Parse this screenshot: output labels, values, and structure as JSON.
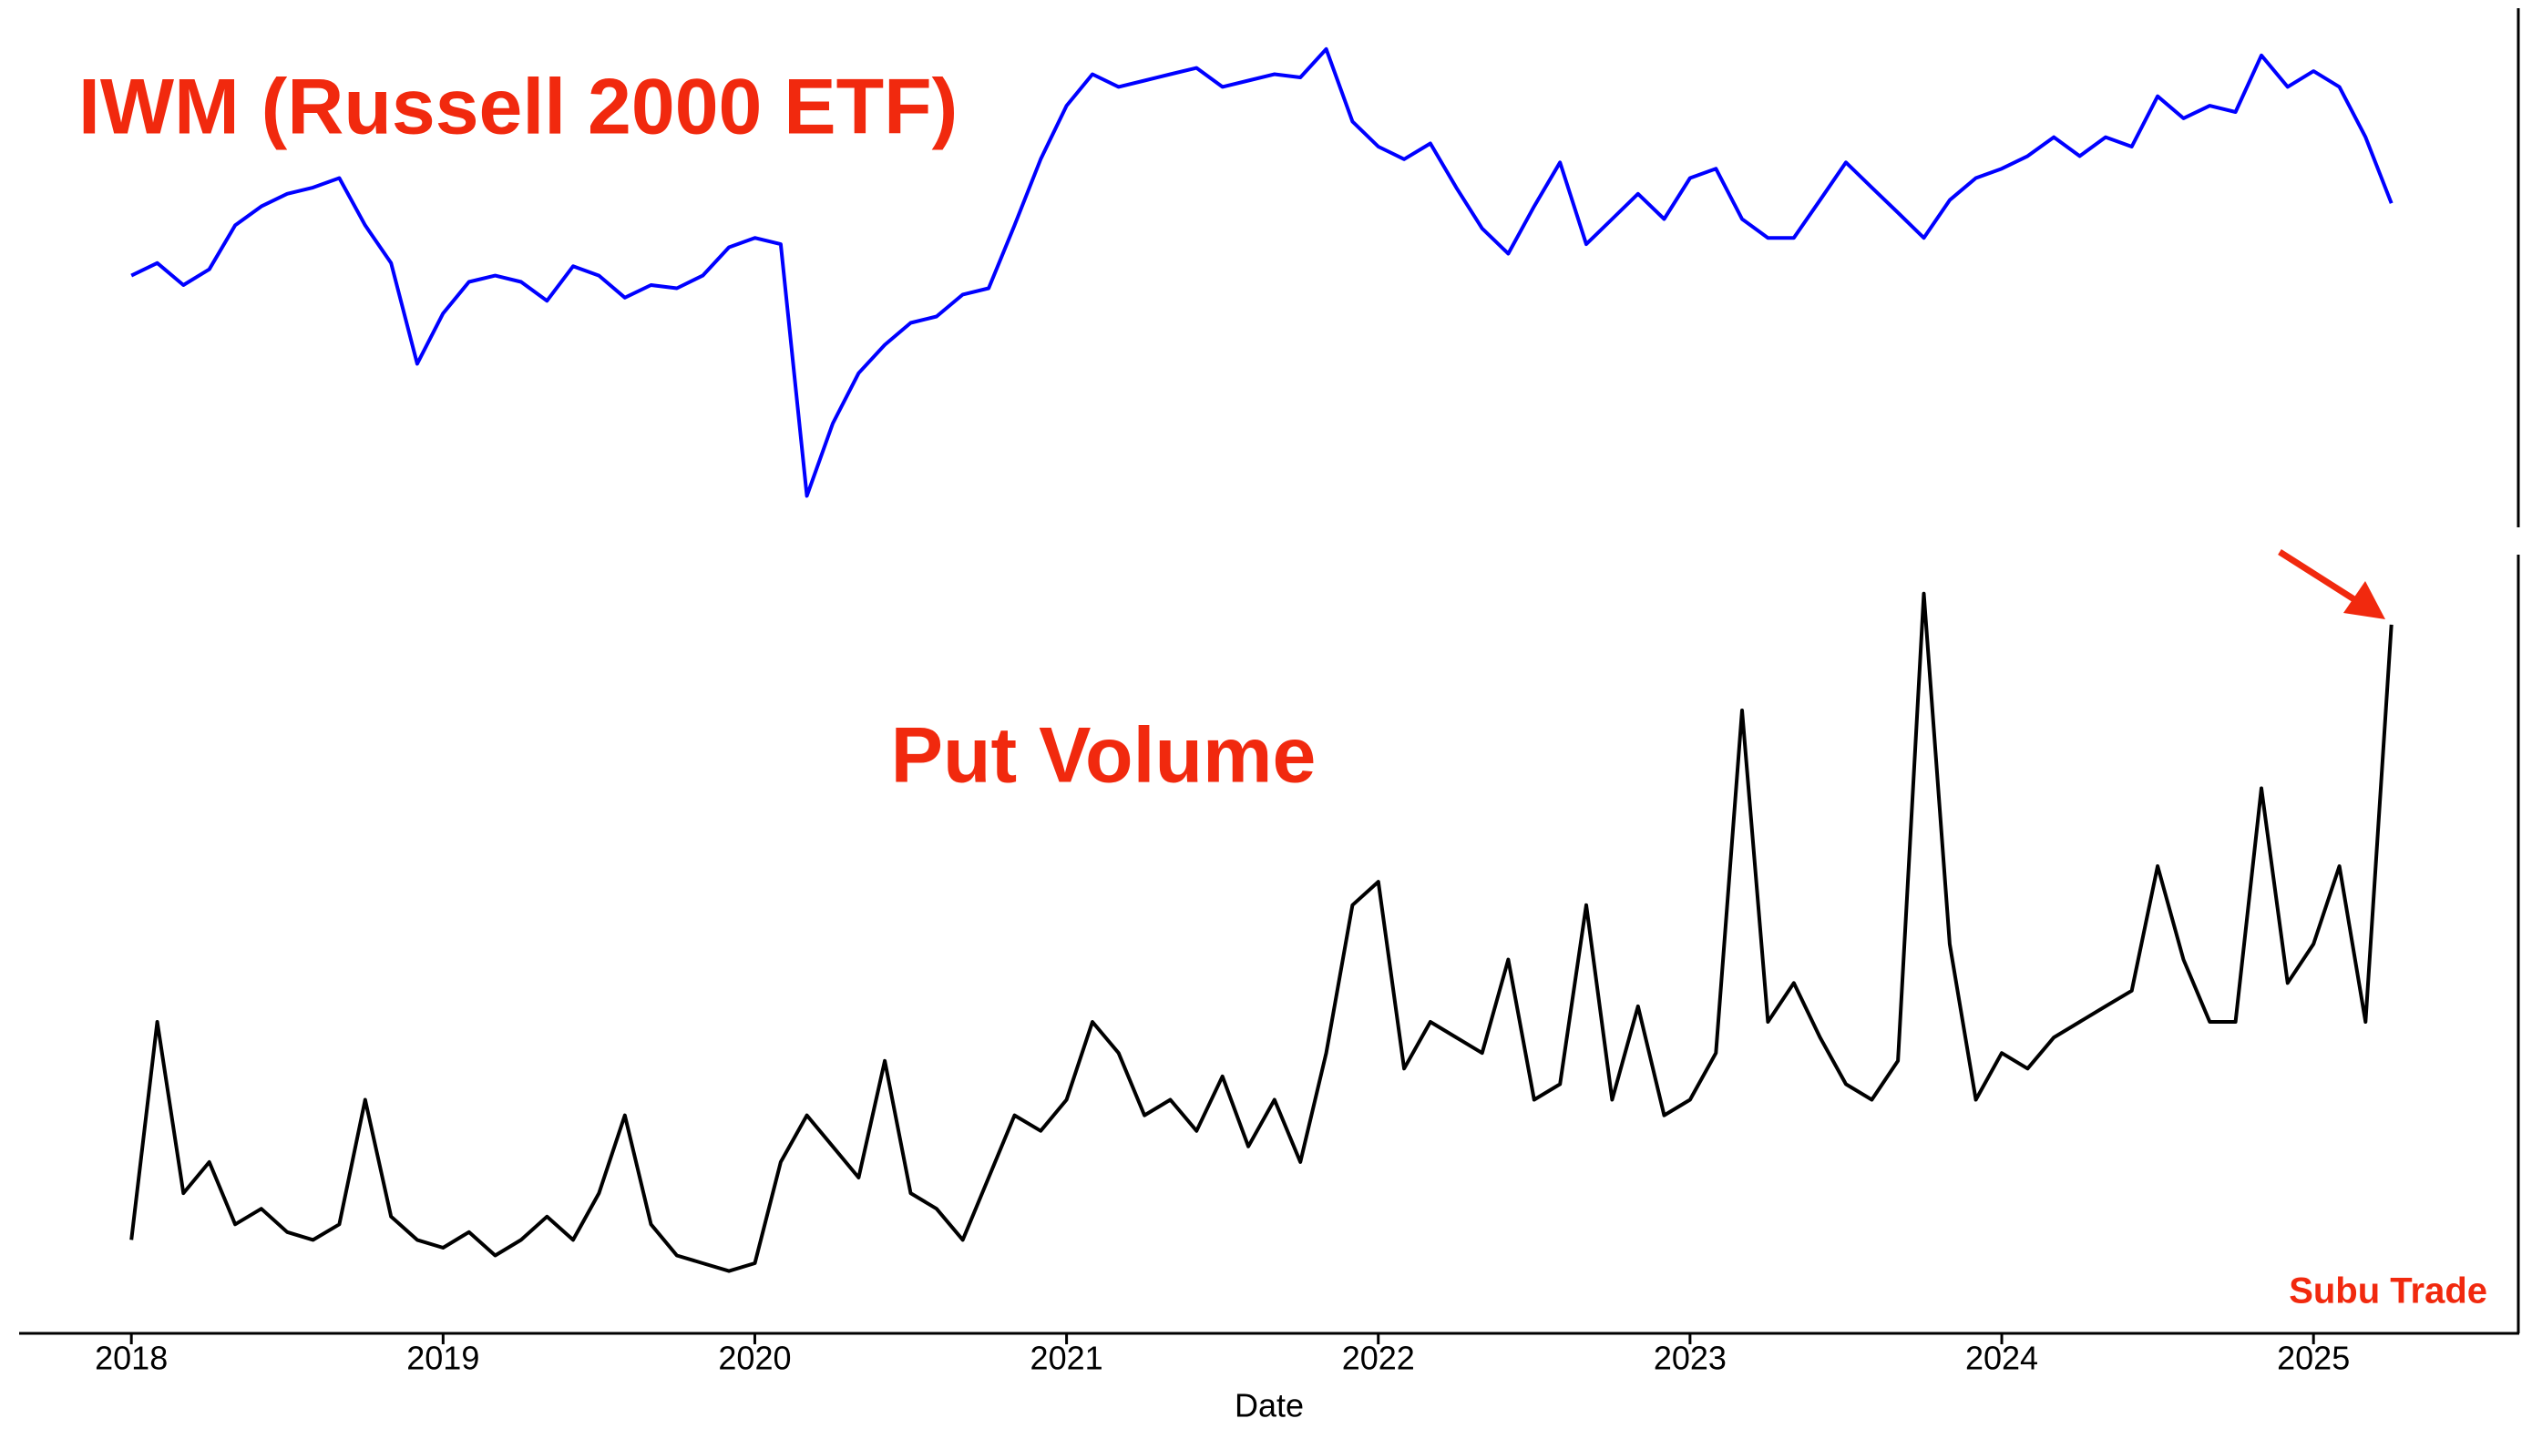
{
  "chart_data": [
    {
      "type": "line",
      "title": "IWM (Russell 2000 ETF)",
      "color": "#0000ff",
      "xlim": [
        2017.64,
        2025.66
      ],
      "ylim": [
        88,
        253
      ],
      "x": [
        2018,
        2018.083,
        2018.167,
        2018.25,
        2018.333,
        2018.417,
        2018.5,
        2018.583,
        2018.667,
        2018.75,
        2018.833,
        2018.917,
        2019,
        2019.083,
        2019.167,
        2019.25,
        2019.333,
        2019.417,
        2019.5,
        2019.583,
        2019.667,
        2019.75,
        2019.833,
        2019.917,
        2020,
        2020.083,
        2020.167,
        2020.25,
        2020.333,
        2020.417,
        2020.5,
        2020.583,
        2020.667,
        2020.75,
        2020.833,
        2020.917,
        2021,
        2021.083,
        2021.167,
        2021.25,
        2021.333,
        2021.417,
        2021.5,
        2021.583,
        2021.667,
        2021.75,
        2021.833,
        2021.917,
        2022,
        2022.083,
        2022.167,
        2022.25,
        2022.333,
        2022.417,
        2022.5,
        2022.583,
        2022.667,
        2022.75,
        2022.833,
        2022.917,
        2023,
        2023.083,
        2023.167,
        2023.25,
        2023.333,
        2023.417,
        2023.5,
        2023.583,
        2023.667,
        2023.75,
        2023.833,
        2023.917,
        2024,
        2024.083,
        2024.167,
        2024.25,
        2024.333,
        2024.417,
        2024.5,
        2024.583,
        2024.667,
        2024.75,
        2024.833,
        2024.917,
        2025,
        2025.083,
        2025.167,
        2025.25
      ],
      "values": [
        168,
        172,
        165,
        170,
        184,
        190,
        194,
        196,
        199,
        184,
        172,
        140,
        156,
        166,
        168,
        166,
        160,
        171,
        168,
        161,
        165,
        164,
        168,
        177,
        180,
        178,
        98,
        121,
        137,
        146,
        153,
        155,
        162,
        164,
        184,
        205,
        222,
        232,
        228,
        230,
        232,
        234,
        228,
        230,
        232,
        231,
        240,
        217,
        209,
        205,
        210,
        196,
        183,
        175,
        190,
        204,
        178,
        186,
        194,
        186,
        199,
        202,
        186,
        180,
        180,
        192,
        204,
        196,
        188,
        180,
        192,
        199,
        202,
        206,
        212,
        206,
        212,
        209,
        225,
        218,
        222,
        220,
        238,
        228,
        233,
        228,
        212,
        191
      ]
    },
    {
      "type": "line",
      "title": "Put Volume",
      "annotation": "Subu Trade",
      "color": "#000000",
      "xlabel": "Date",
      "xlim": [
        2017.64,
        2025.66
      ],
      "ylim": [
        0,
        100
      ],
      "xticks": [
        2018,
        2019,
        2020,
        2021,
        2022,
        2023,
        2024,
        2025
      ],
      "x": [
        2018,
        2018.083,
        2018.167,
        2018.25,
        2018.333,
        2018.417,
        2018.5,
        2018.583,
        2018.667,
        2018.75,
        2018.833,
        2018.917,
        2019,
        2019.083,
        2019.167,
        2019.25,
        2019.333,
        2019.417,
        2019.5,
        2019.583,
        2019.667,
        2019.75,
        2019.833,
        2019.917,
        2020,
        2020.083,
        2020.167,
        2020.25,
        2020.333,
        2020.417,
        2020.5,
        2020.583,
        2020.667,
        2020.75,
        2020.833,
        2020.917,
        2021,
        2021.083,
        2021.167,
        2021.25,
        2021.333,
        2021.417,
        2021.5,
        2021.583,
        2021.667,
        2021.75,
        2021.833,
        2021.917,
        2022,
        2022.083,
        2022.167,
        2022.25,
        2022.333,
        2022.417,
        2022.5,
        2022.583,
        2022.667,
        2022.75,
        2022.833,
        2022.917,
        2023,
        2023.083,
        2023.167,
        2023.25,
        2023.333,
        2023.417,
        2023.5,
        2023.583,
        2023.667,
        2023.75,
        2023.833,
        2023.917,
        2024,
        2024.083,
        2024.167,
        2024.25,
        2024.333,
        2024.417,
        2024.5,
        2024.583,
        2024.667,
        2024.75,
        2024.833,
        2024.917,
        2025,
        2025.083,
        2025.167,
        2025.25
      ],
      "values": [
        12,
        40,
        18,
        22,
        14,
        16,
        13,
        12,
        14,
        30,
        15,
        12,
        11,
        13,
        10,
        12,
        15,
        12,
        18,
        28,
        14,
        10,
        9,
        8,
        9,
        22,
        28,
        24,
        20,
        35,
        18,
        16,
        12,
        20,
        28,
        26,
        30,
        40,
        36,
        28,
        30,
        26,
        33,
        24,
        30,
        22,
        36,
        55,
        58,
        34,
        40,
        38,
        36,
        48,
        30,
        32,
        55,
        30,
        42,
        28,
        30,
        36,
        80,
        40,
        45,
        38,
        32,
        30,
        35,
        95,
        50,
        30,
        36,
        34,
        38,
        40,
        42,
        44,
        60,
        48,
        40,
        40,
        70,
        45,
        50,
        60,
        40,
        91
      ]
    }
  ]
}
